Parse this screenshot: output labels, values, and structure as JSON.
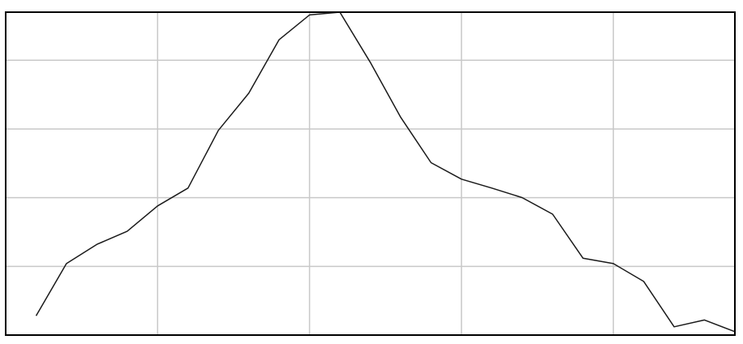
{
  "chart_data": {
    "type": "line",
    "title": "",
    "xlabel": "",
    "ylabel": "",
    "x": [
      0.2,
      0.4,
      0.6,
      0.8,
      1.0,
      1.2,
      1.4,
      1.6,
      1.8,
      2.0,
      2.2,
      2.4,
      2.6,
      2.8,
      3.0,
      3.2,
      3.4,
      3.6,
      3.8,
      4.0,
      4.2,
      4.4,
      4.6,
      4.8
    ],
    "xlim": [
      0,
      4.8
    ],
    "ylim": [
      0,
      4.7
    ],
    "x_gridlines": [
      1,
      2,
      3,
      4
    ],
    "y_gridlines": [
      1,
      2,
      3,
      4
    ],
    "grid": true,
    "legend": "none",
    "colors": {
      "line": "#1a1a1a",
      "grid": "#c8c8c8",
      "frame": "#000000",
      "background": "#ffffff"
    },
    "series": [
      {
        "values": [
          0.28,
          1.04,
          1.32,
          1.51,
          1.88,
          2.14,
          2.98,
          3.52,
          4.3,
          4.66,
          4.7,
          3.97,
          3.17,
          2.51,
          2.27,
          2.14,
          2.0,
          1.76,
          1.12,
          1.04,
          0.78,
          0.12,
          0.22,
          0.05
        ]
      }
    ]
  }
}
